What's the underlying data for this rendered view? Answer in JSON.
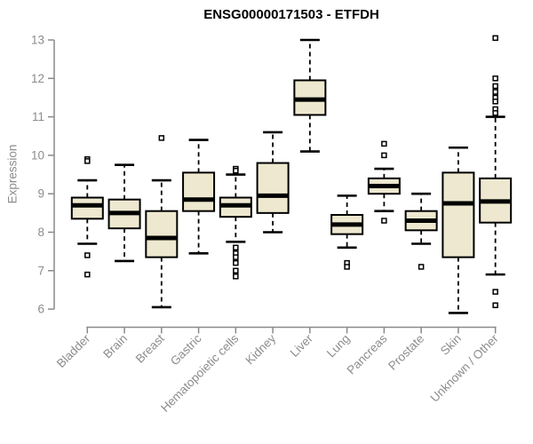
{
  "chart_data": {
    "type": "boxplot",
    "title": "ENSG00000171503 - ETFDH",
    "ylabel": "Expression",
    "ylim": [
      5.8,
      13.1
    ],
    "yticks": [
      6,
      7,
      8,
      9,
      10,
      11,
      12,
      13
    ],
    "grid": false,
    "legend": "none",
    "categories": [
      "Bladder",
      "Brain",
      "Breast",
      "Gastric",
      "Hematopoietic cells",
      "Kidney",
      "Liver",
      "Lung",
      "Pancreas",
      "Prostate",
      "Skin",
      "Unknown / Other"
    ],
    "series": [
      {
        "name": "Bladder",
        "low": 7.7,
        "q1": 8.35,
        "median": 8.7,
        "q3": 8.9,
        "high": 9.35,
        "outliers": [
          9.9,
          9.85,
          7.4,
          6.9
        ]
      },
      {
        "name": "Brain",
        "low": 7.25,
        "q1": 8.1,
        "median": 8.5,
        "q3": 8.85,
        "high": 9.75,
        "outliers": []
      },
      {
        "name": "Breast",
        "low": 6.05,
        "q1": 7.35,
        "median": 7.85,
        "q3": 8.55,
        "high": 9.35,
        "outliers": [
          10.45
        ]
      },
      {
        "name": "Gastric",
        "low": 7.45,
        "q1": 8.55,
        "median": 8.85,
        "q3": 9.55,
        "high": 10.4,
        "outliers": []
      },
      {
        "name": "Hematopoietic cells",
        "low": 7.75,
        "q1": 8.4,
        "median": 8.7,
        "q3": 8.9,
        "high": 9.5,
        "outliers": [
          9.65,
          9.6,
          7.6,
          7.45,
          7.35,
          7.2,
          7.0,
          6.85
        ]
      },
      {
        "name": "Kidney",
        "low": 8.0,
        "q1": 8.5,
        "median": 8.95,
        "q3": 9.8,
        "high": 10.6,
        "outliers": []
      },
      {
        "name": "Liver",
        "low": 10.1,
        "q1": 11.05,
        "median": 11.45,
        "q3": 11.95,
        "high": 13.0,
        "outliers": []
      },
      {
        "name": "Lung",
        "low": 7.6,
        "q1": 7.95,
        "median": 8.2,
        "q3": 8.45,
        "high": 8.95,
        "outliers": [
          7.2,
          7.1
        ]
      },
      {
        "name": "Pancreas",
        "low": 8.55,
        "q1": 9.0,
        "median": 9.2,
        "q3": 9.4,
        "high": 9.65,
        "outliers": [
          10.3,
          10.0,
          8.3
        ]
      },
      {
        "name": "Prostate",
        "low": 7.7,
        "q1": 8.05,
        "median": 8.3,
        "q3": 8.55,
        "high": 9.0,
        "outliers": [
          7.1
        ]
      },
      {
        "name": "Skin",
        "low": 5.9,
        "q1": 7.35,
        "median": 8.75,
        "q3": 9.55,
        "high": 10.2,
        "outliers": []
      },
      {
        "name": "Unknown / Other",
        "low": 6.9,
        "q1": 8.25,
        "median": 8.8,
        "q3": 9.4,
        "high": 11.0,
        "outliers": [
          13.05,
          12.0,
          11.8,
          11.65,
          11.5,
          11.4,
          11.2,
          11.1,
          6.45,
          6.1
        ]
      }
    ],
    "colors": {
      "box_fill": "#EDE8CF",
      "box_stroke": "#000000",
      "median": "#000000",
      "whisker": "#000000",
      "outlier_fill": "#ffffff",
      "outlier_stroke": "#000000",
      "axis": "#8a8a8a",
      "tick_text": "#8c8c8c",
      "title_text": "#000000",
      "background": "#ffffff"
    }
  }
}
